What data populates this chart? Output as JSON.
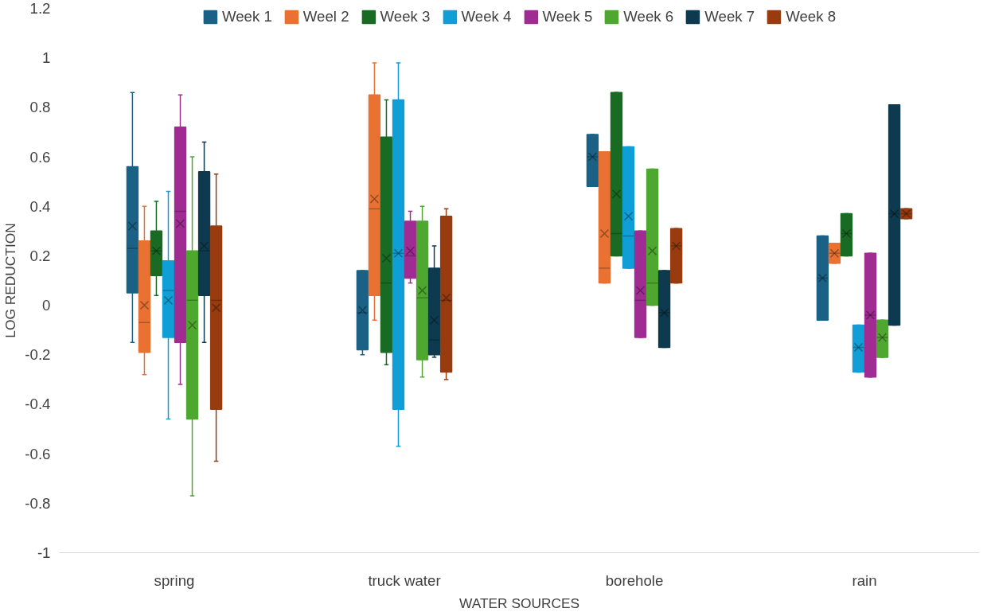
{
  "chart_data": {
    "type": "box",
    "xlabel": "WATER SOURCES",
    "ylabel": "LOG REDUCTION",
    "categories": [
      "spring",
      "truck water",
      "borehole",
      "rain"
    ],
    "ylim": [
      -1,
      1.2
    ],
    "yticks": [
      {
        "value": -1,
        "label": "-1"
      },
      {
        "value": -0.8,
        "label": "-0.8"
      },
      {
        "value": -0.6,
        "label": "-0.6"
      },
      {
        "value": -0.4,
        "label": "-0.4"
      },
      {
        "value": -0.2,
        "label": "-0.2"
      },
      0,
      0.2,
      0.4,
      0.6,
      0.8,
      1,
      1.2
    ],
    "legend": "top",
    "marker": "cross",
    "series": [
      {
        "name": "Week 1",
        "color": "#1a6185",
        "boxes": [
          {
            "low": -0.15,
            "q1": 0.05,
            "median": 0.23,
            "q3": 0.56,
            "high": 0.86,
            "mean": 0.32
          },
          {
            "low": -0.2,
            "q1": -0.18,
            "median": -0.03,
            "q3": 0.14,
            "high": 0.14,
            "mean": -0.02
          },
          {
            "low": 0.48,
            "q1": 0.48,
            "median": 0.6,
            "q3": 0.69,
            "high": 0.69,
            "mean": 0.6
          },
          {
            "low": -0.06,
            "q1": -0.06,
            "median": 0.11,
            "q3": 0.28,
            "high": 0.28,
            "mean": 0.11
          }
        ]
      },
      {
        "name": "Weel 2",
        "color": "#e97132",
        "boxes": [
          {
            "low": -0.28,
            "q1": -0.19,
            "median": -0.07,
            "q3": 0.26,
            "high": 0.4,
            "mean": 0.0
          },
          {
            "low": -0.06,
            "q1": 0.04,
            "median": 0.39,
            "q3": 0.85,
            "high": 0.98,
            "mean": 0.43
          },
          {
            "low": 0.09,
            "q1": 0.09,
            "median": 0.15,
            "q3": 0.62,
            "high": 0.62,
            "mean": 0.29
          },
          {
            "low": 0.17,
            "q1": 0.17,
            "median": 0.21,
            "q3": 0.25,
            "high": 0.25,
            "mean": 0.21
          }
        ]
      },
      {
        "name": "Week 3",
        "color": "#196b24",
        "boxes": [
          {
            "low": 0.04,
            "q1": 0.12,
            "median": 0.22,
            "q3": 0.3,
            "high": 0.42,
            "mean": 0.22
          },
          {
            "low": -0.24,
            "q1": -0.19,
            "median": 0.09,
            "q3": 0.68,
            "high": 0.83,
            "mean": 0.19
          },
          {
            "low": 0.2,
            "q1": 0.2,
            "median": 0.29,
            "q3": 0.86,
            "high": 0.86,
            "mean": 0.45
          },
          {
            "low": 0.2,
            "q1": 0.2,
            "median": 0.29,
            "q3": 0.37,
            "high": 0.37,
            "mean": 0.29
          }
        ]
      },
      {
        "name": "Week 4",
        "color": "#0f9ed5",
        "boxes": [
          {
            "low": -0.46,
            "q1": -0.13,
            "median": 0.06,
            "q3": 0.18,
            "high": 0.46,
            "mean": 0.02
          },
          {
            "low": -0.57,
            "q1": -0.42,
            "median": 0.21,
            "q3": 0.83,
            "high": 0.98,
            "mean": 0.21
          },
          {
            "low": 0.15,
            "q1": 0.15,
            "median": 0.28,
            "q3": 0.64,
            "high": 0.64,
            "mean": 0.36
          },
          {
            "low": -0.27,
            "q1": -0.27,
            "median": -0.17,
            "q3": -0.08,
            "high": -0.08,
            "mean": -0.17
          }
        ]
      },
      {
        "name": "Week 5",
        "color": "#a02b93",
        "boxes": [
          {
            "low": -0.32,
            "q1": -0.15,
            "median": 0.38,
            "q3": 0.72,
            "high": 0.85,
            "mean": 0.33
          },
          {
            "low": 0.09,
            "q1": 0.11,
            "median": 0.2,
            "q3": 0.34,
            "high": 0.38,
            "mean": 0.22
          },
          {
            "low": -0.13,
            "q1": -0.13,
            "median": 0.02,
            "q3": 0.3,
            "high": 0.3,
            "mean": 0.06
          },
          {
            "low": -0.29,
            "q1": -0.29,
            "median": -0.04,
            "q3": 0.21,
            "high": 0.21,
            "mean": -0.04
          }
        ]
      },
      {
        "name": "Week 6",
        "color": "#4ea72e",
        "boxes": [
          {
            "low": -0.77,
            "q1": -0.46,
            "median": 0.02,
            "q3": 0.22,
            "high": 0.6,
            "mean": -0.08
          },
          {
            "low": -0.29,
            "q1": -0.22,
            "median": 0.03,
            "q3": 0.34,
            "high": 0.4,
            "mean": 0.06
          },
          {
            "low": 0.0,
            "q1": 0.0,
            "median": 0.09,
            "q3": 0.55,
            "high": 0.55,
            "mean": 0.22
          },
          {
            "low": -0.21,
            "q1": -0.21,
            "median": -0.13,
            "q3": -0.06,
            "high": -0.06,
            "mean": -0.13
          }
        ]
      },
      {
        "name": "Week 7",
        "color": "#0e3a4f",
        "boxes": [
          {
            "low": -0.15,
            "q1": 0.04,
            "median": 0.22,
            "q3": 0.54,
            "high": 0.66,
            "mean": 0.24
          },
          {
            "low": -0.21,
            "q1": -0.2,
            "median": -0.14,
            "q3": 0.15,
            "high": 0.24,
            "mean": -0.06
          },
          {
            "low": -0.17,
            "q1": -0.17,
            "median": -0.03,
            "q3": 0.14,
            "high": 0.14,
            "mean": -0.03
          },
          {
            "low": -0.08,
            "q1": -0.08,
            "median": 0.37,
            "q3": 0.81,
            "high": 0.81,
            "mean": 0.37
          }
        ]
      },
      {
        "name": "Week 8",
        "color": "#983c10",
        "boxes": [
          {
            "low": -0.63,
            "q1": -0.42,
            "median": 0.02,
            "q3": 0.32,
            "high": 0.53,
            "mean": -0.01
          },
          {
            "low": -0.3,
            "q1": -0.27,
            "median": 0.02,
            "q3": 0.36,
            "high": 0.39,
            "mean": 0.03
          },
          {
            "low": 0.09,
            "q1": 0.09,
            "median": 0.24,
            "q3": 0.31,
            "high": 0.31,
            "mean": 0.24
          },
          {
            "low": 0.35,
            "q1": 0.35,
            "median": 0.37,
            "q3": 0.39,
            "high": 0.39,
            "mean": 0.37
          }
        ]
      }
    ]
  }
}
